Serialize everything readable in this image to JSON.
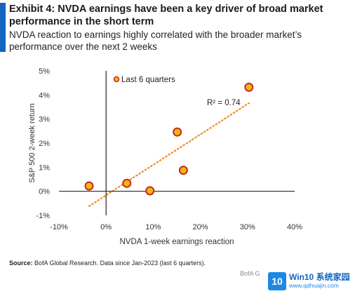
{
  "header": {
    "title": "Exhibit 4: NVDA earnings have been a key driver of broad market performance in the short term",
    "subtitle": "NVDA reaction to earnings highly correlated with the broader market’s performance over the next 2 weeks"
  },
  "footer": {
    "source_label": "Source:",
    "source_text": " BofA Global Research. Data since Jan-2023 (last 6 quarters).",
    "corner_note": "BofA G"
  },
  "watermark": {
    "logo": "10",
    "main": "Win10 系统家园",
    "url": "www.qdhuajin.com"
  },
  "colors": {
    "accent": "#1565c0",
    "marker_fill": "#f2b705",
    "marker_edge": "#c62828",
    "trend": "#f08a24",
    "axis": "#222222"
  },
  "chart_data": {
    "type": "scatter",
    "title": "",
    "xlabel": "NVDA 1-week earnings reaction",
    "ylabel": "S&P 500 2-week return",
    "xlim": [
      -10,
      40
    ],
    "ylim": [
      -1,
      5
    ],
    "x_ticks": [
      -10,
      0,
      10,
      20,
      30,
      40
    ],
    "y_ticks": [
      -1,
      0,
      1,
      2,
      3,
      4,
      5
    ],
    "x_tick_labels": [
      "-10%",
      "0%",
      "10%",
      "20%",
      "30%",
      "40%"
    ],
    "y_tick_labels": [
      "-1%",
      "0%",
      "1%",
      "2%",
      "3%",
      "4%",
      "5%"
    ],
    "grid": false,
    "legend_position": "top-left",
    "series": [
      {
        "name": "Last 6 quarters",
        "points": [
          {
            "x": -3.6,
            "y": 0.22
          },
          {
            "x": 4.4,
            "y": 0.33
          },
          {
            "x": 9.3,
            "y": 0.02
          },
          {
            "x": 15.1,
            "y": 2.46
          },
          {
            "x": 16.4,
            "y": 0.87
          },
          {
            "x": 30.3,
            "y": 4.32
          }
        ]
      }
    ],
    "trendline": {
      "style": "dotted",
      "x": [
        -3.6,
        30.3
      ],
      "y": [
        -0.62,
        3.66
      ]
    },
    "annotation": "R² = 0.74"
  }
}
